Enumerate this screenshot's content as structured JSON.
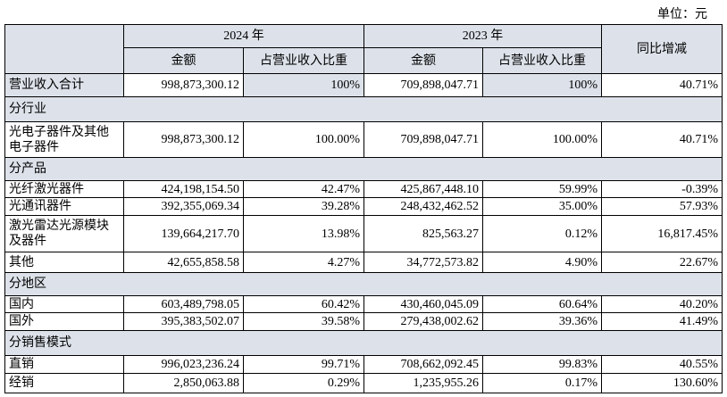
{
  "unit": "单位：元",
  "header": {
    "year_2024": "2024 年",
    "year_2023": "2023 年",
    "yoy": "同比增减",
    "amount_2024": "金额",
    "share_2024": "占营业收入比重",
    "amount_2023": "金额",
    "share_2023": "占营业收入比重"
  },
  "rows": [
    [
      "营业收入合计",
      "998,873,300.12",
      "100%",
      "709,898,047.71",
      "100%",
      "40.71%"
    ],
    [
      "分行业"
    ],
    [
      "光电子器件及其他电子器件",
      "998,873,300.12",
      "100.00%",
      "709,898,047.71",
      "100.00%",
      "40.71%"
    ],
    [
      "分产品"
    ],
    [
      "光纤激光器件",
      "424,198,154.50",
      "42.47%",
      "425,867,448.10",
      "59.99%",
      "-0.39%"
    ],
    [
      "光通讯器件",
      "392,355,069.34",
      "39.28%",
      "248,432,462.52",
      "35.00%",
      "57.93%"
    ],
    [
      "激光雷达光源模块及器件",
      "139,664,217.70",
      "13.98%",
      "825,563.27",
      "0.12%",
      "16,817.45%"
    ],
    [
      "其他",
      "42,655,858.58",
      "4.27%",
      "34,772,573.82",
      "4.90%",
      "22.67%"
    ],
    [
      "分地区"
    ],
    [
      "国内",
      "603,489,798.05",
      "60.42%",
      "430,460,045.09",
      "60.64%",
      "40.20%"
    ],
    [
      "国外",
      "395,383,502.07",
      "39.58%",
      "279,438,002.62",
      "39.36%",
      "41.49%"
    ],
    [
      "分销售模式"
    ],
    [
      "直销",
      "996,023,236.24",
      "99.71%",
      "708,662,092.45",
      "99.83%",
      "40.55%"
    ],
    [
      "经销",
      "2,850,063.88",
      "0.29%",
      "1,235,955.26",
      "0.17%",
      "130.60%"
    ]
  ]
}
